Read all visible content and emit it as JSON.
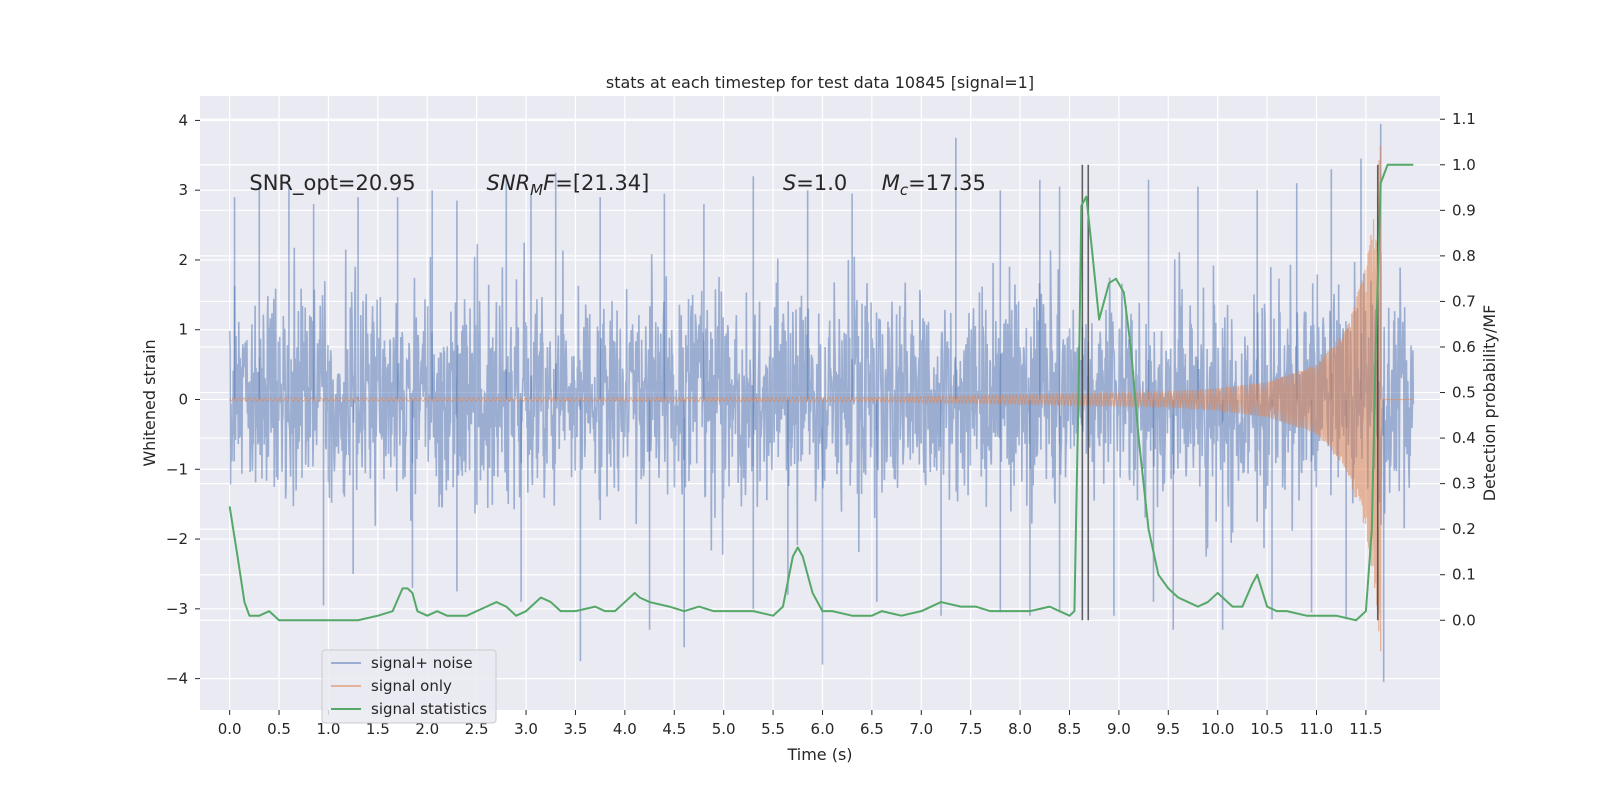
{
  "chart_data": {
    "type": "line",
    "title": "stats at each timestep for test data 10845 [signal=1]",
    "xlabel": "Time (s)",
    "ylabel_left": "Whitened strain",
    "ylabel_right": "Detection probability/MF",
    "xlim": [
      -0.3,
      12.25
    ],
    "ylim_left": [
      -4.45,
      4.35
    ],
    "ylim_right": [
      -0.197,
      1.151
    ],
    "x_ticks": [
      "0.0",
      "0.5",
      "1.0",
      "1.5",
      "2.0",
      "2.5",
      "3.0",
      "3.5",
      "4.0",
      "4.5",
      "5.0",
      "5.5",
      "6.0",
      "6.5",
      "7.0",
      "7.5",
      "8.0",
      "8.5",
      "9.0",
      "9.5",
      "10.0",
      "10.5",
      "11.0",
      "11.5"
    ],
    "y_ticks_left": [
      "4",
      "3",
      "2",
      "1",
      "0",
      "−1",
      "−2",
      "−3",
      "−4"
    ],
    "y_ticks_right": [
      "1.1",
      "1.0",
      "0.9",
      "0.8",
      "0.7",
      "0.6",
      "0.5",
      "0.4",
      "0.3",
      "0.2",
      "0.1",
      "0.0"
    ],
    "grid": true,
    "legend_position": "lower-left",
    "annotations": [
      {
        "text": "SNR_opt=20.95",
        "x": 0.2,
        "y": 3.1
      },
      {
        "text": "SNR",
        "sub": "M",
        "tail": "F=[21.34]",
        "x": 2.6,
        "y": 3.1
      },
      {
        "text": "S",
        "tail": "=1.0",
        "x": 5.6,
        "y": 3.1
      },
      {
        "text": "M",
        "sub": "c",
        "tail": "=17.35",
        "x": 6.6,
        "y": 3.1
      }
    ],
    "vertical_lines": [
      8.63,
      8.69,
      11.62
    ],
    "series": [
      {
        "name": "signal+ noise",
        "color": "#4c72b0",
        "axis": "left",
        "t_range": [
          0.0,
          11.98
        ],
        "typical_envelope": [
          -1.8,
          2.0
        ],
        "spikes": [
          [
            0.05,
            2.9
          ],
          [
            0.3,
            3.1
          ],
          [
            0.6,
            3.05
          ],
          [
            0.85,
            2.8
          ],
          [
            1.3,
            2.9
          ],
          [
            1.7,
            2.9
          ],
          [
            2.05,
            3.0
          ],
          [
            2.3,
            2.85
          ],
          [
            2.8,
            3.2
          ],
          [
            3.05,
            2.95
          ],
          [
            3.3,
            3.25
          ],
          [
            3.75,
            2.9
          ],
          [
            4.4,
            2.95
          ],
          [
            4.8,
            2.8
          ],
          [
            5.3,
            3.2
          ],
          [
            5.85,
            3.0
          ],
          [
            6.3,
            2.95
          ],
          [
            7.35,
            3.75
          ],
          [
            7.8,
            3.0
          ],
          [
            8.2,
            3.15
          ],
          [
            8.4,
            3.05
          ],
          [
            9.3,
            3.15
          ],
          [
            9.8,
            3.05
          ],
          [
            10.4,
            3.0
          ],
          [
            10.8,
            3.1
          ],
          [
            11.15,
            3.3
          ],
          [
            11.45,
            3.45
          ],
          [
            11.65,
            3.95
          ],
          [
            0.95,
            -2.95
          ],
          [
            1.25,
            -2.5
          ],
          [
            1.85,
            -2.7
          ],
          [
            2.3,
            -2.75
          ],
          [
            2.95,
            -2.9
          ],
          [
            3.55,
            -3.75
          ],
          [
            4.25,
            -3.3
          ],
          [
            4.6,
            -3.55
          ],
          [
            5.3,
            -3.0
          ],
          [
            5.65,
            -2.8
          ],
          [
            6.0,
            -3.8
          ],
          [
            6.55,
            -2.9
          ],
          [
            7.2,
            -3.1
          ],
          [
            7.8,
            -3.05
          ],
          [
            8.1,
            -3.1
          ],
          [
            8.4,
            -3.05
          ],
          [
            8.95,
            -3.1
          ],
          [
            9.35,
            -2.9
          ],
          [
            9.55,
            -3.3
          ],
          [
            10.05,
            -3.3
          ],
          [
            10.55,
            -3.15
          ],
          [
            10.95,
            -3.05
          ],
          [
            11.3,
            -3.15
          ],
          [
            11.68,
            -4.05
          ]
        ]
      },
      {
        "name": "signal only",
        "color": "#dd8452",
        "axis": "left",
        "amplitude_points": [
          [
            0.0,
            0.02
          ],
          [
            6.5,
            0.03
          ],
          [
            8.5,
            0.08
          ],
          [
            9.5,
            0.11
          ],
          [
            10.0,
            0.16
          ],
          [
            10.5,
            0.25
          ],
          [
            11.0,
            0.5
          ],
          [
            11.3,
            1.0
          ],
          [
            11.5,
            1.9
          ],
          [
            11.6,
            2.8
          ],
          [
            11.65,
            3.85
          ],
          [
            11.66,
            0.0
          ],
          [
            11.98,
            0.0
          ]
        ]
      },
      {
        "name": "signal statistics",
        "color": "#55a868",
        "axis": "right",
        "x": [
          0.0,
          0.08,
          0.15,
          0.2,
          0.3,
          0.4,
          0.5,
          0.7,
          1.0,
          1.3,
          1.5,
          1.65,
          1.75,
          1.8,
          1.85,
          1.9,
          2.0,
          2.1,
          2.2,
          2.4,
          2.6,
          2.7,
          2.8,
          2.9,
          3.0,
          3.15,
          3.25,
          3.35,
          3.5,
          3.7,
          3.8,
          3.9,
          4.0,
          4.1,
          4.15,
          4.25,
          4.45,
          4.6,
          4.75,
          4.9,
          5.1,
          5.3,
          5.5,
          5.6,
          5.7,
          5.75,
          5.8,
          5.9,
          6.0,
          6.1,
          6.3,
          6.5,
          6.6,
          6.8,
          7.0,
          7.2,
          7.4,
          7.55,
          7.7,
          7.9,
          8.1,
          8.3,
          8.4,
          8.5,
          8.55,
          8.6,
          8.62,
          8.67,
          8.72,
          8.8,
          8.85,
          8.9,
          8.97,
          9.05,
          9.12,
          9.2,
          9.3,
          9.4,
          9.5,
          9.6,
          9.7,
          9.8,
          9.9,
          10.0,
          10.05,
          10.15,
          10.25,
          10.35,
          10.4,
          10.5,
          10.6,
          10.7,
          10.9,
          11.2,
          11.4,
          11.5,
          11.56,
          11.6,
          11.65,
          11.72,
          11.77,
          11.82,
          11.9,
          11.98
        ],
        "y": [
          0.25,
          0.14,
          0.04,
          0.01,
          0.01,
          0.02,
          0.0,
          0.0,
          0.0,
          0.0,
          0.01,
          0.02,
          0.07,
          0.07,
          0.06,
          0.02,
          0.01,
          0.02,
          0.01,
          0.01,
          0.03,
          0.04,
          0.03,
          0.01,
          0.02,
          0.05,
          0.04,
          0.02,
          0.02,
          0.03,
          0.02,
          0.02,
          0.04,
          0.06,
          0.05,
          0.04,
          0.03,
          0.02,
          0.03,
          0.02,
          0.02,
          0.02,
          0.01,
          0.03,
          0.14,
          0.16,
          0.14,
          0.06,
          0.02,
          0.02,
          0.01,
          0.01,
          0.02,
          0.01,
          0.02,
          0.04,
          0.03,
          0.03,
          0.02,
          0.02,
          0.02,
          0.03,
          0.02,
          0.01,
          0.02,
          0.6,
          0.91,
          0.93,
          0.83,
          0.66,
          0.7,
          0.74,
          0.75,
          0.72,
          0.6,
          0.4,
          0.2,
          0.1,
          0.07,
          0.05,
          0.04,
          0.03,
          0.04,
          0.06,
          0.05,
          0.03,
          0.03,
          0.08,
          0.1,
          0.03,
          0.02,
          0.02,
          0.01,
          0.01,
          0.0,
          0.02,
          0.2,
          0.6,
          0.96,
          1.0,
          1.0,
          1.0,
          1.0,
          1.0
        ]
      }
    ]
  }
}
